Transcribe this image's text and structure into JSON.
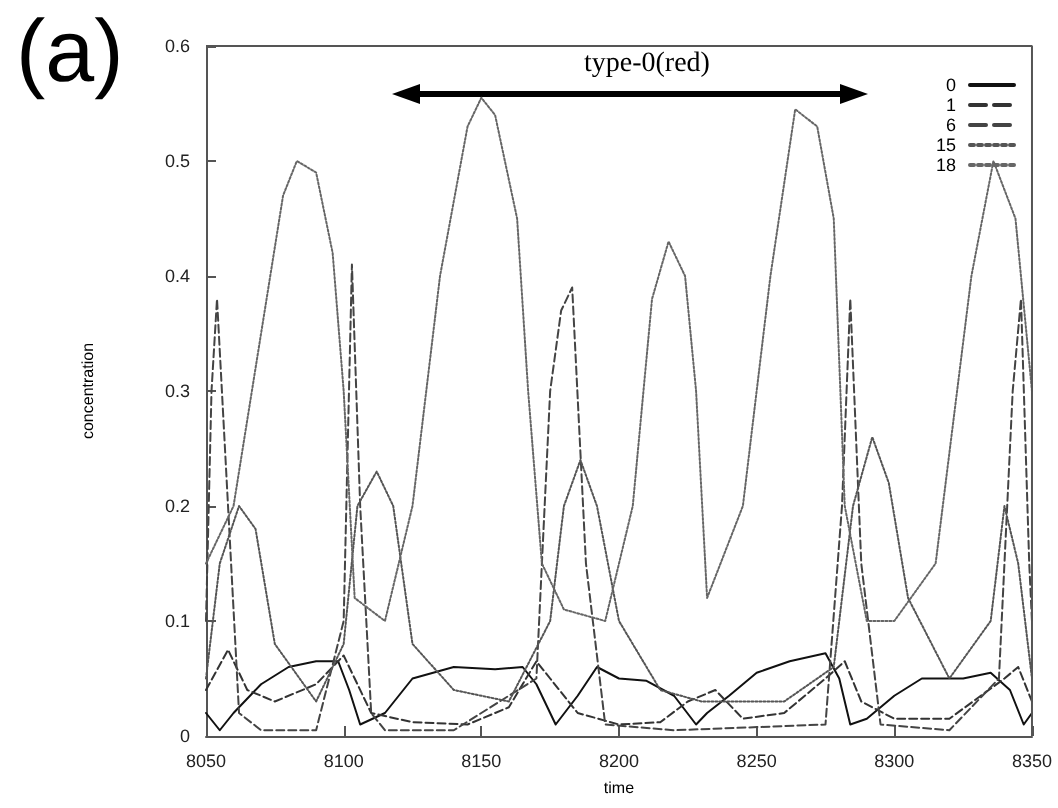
{
  "chart_data": {
    "type": "line",
    "xlabel": "time",
    "ylabel": "concentration",
    "annotations": [
      "(a)",
      "type-0(red)"
    ],
    "xlim": [
      8050,
      8350
    ],
    "xticks": [
      8050,
      8100,
      8150,
      8200,
      8250,
      8300,
      8350
    ],
    "ylim": [
      0,
      0.6
    ],
    "yticks": [
      0,
      0.1,
      0.2,
      0.3,
      0.4,
      0.5,
      0.6
    ],
    "grid": false,
    "legend": "top right",
    "marker": "none",
    "series": [
      {
        "name": "0",
        "color": "#111111",
        "line_style": "solid",
        "x": [
          8050,
          8055,
          8060,
          8070,
          8080,
          8090,
          8098,
          8102,
          8106,
          8115,
          8125,
          8140,
          8155,
          8165,
          8170,
          8177,
          8185,
          8192,
          8200,
          8210,
          8220,
          8228,
          8232,
          8240,
          8250,
          8262,
          8275,
          8280,
          8284,
          8290,
          8300,
          8310,
          8325,
          8335,
          8342,
          8347,
          8350
        ],
        "values": [
          0.02,
          0.005,
          0.02,
          0.045,
          0.06,
          0.065,
          0.065,
          0.04,
          0.01,
          0.02,
          0.05,
          0.06,
          0.058,
          0.06,
          0.045,
          0.01,
          0.035,
          0.06,
          0.05,
          0.048,
          0.035,
          0.01,
          0.02,
          0.035,
          0.055,
          0.065,
          0.072,
          0.05,
          0.01,
          0.015,
          0.035,
          0.05,
          0.05,
          0.055,
          0.04,
          0.01,
          0.02
        ]
      },
      {
        "name": "1",
        "color": "#333333",
        "line_style": "dashed",
        "x": [
          8050,
          8058,
          8065,
          8075,
          8090,
          8100,
          8104,
          8110,
          8125,
          8145,
          8160,
          8170,
          8175,
          8185,
          8200,
          8215,
          8225,
          8235,
          8245,
          8260,
          8275,
          8282,
          8288,
          8300,
          8320,
          8340,
          8345,
          8350
        ],
        "values": [
          0.04,
          0.075,
          0.04,
          0.03,
          0.045,
          0.07,
          0.05,
          0.02,
          0.012,
          0.01,
          0.025,
          0.065,
          0.05,
          0.02,
          0.01,
          0.012,
          0.03,
          0.04,
          0.015,
          0.02,
          0.05,
          0.065,
          0.03,
          0.015,
          0.015,
          0.05,
          0.06,
          0.03
        ]
      },
      {
        "name": "6",
        "color": "#444444",
        "line_style": "dashed",
        "x": [
          8050,
          8052,
          8054,
          8058,
          8062,
          8070,
          8090,
          8100,
          8103,
          8106,
          8110,
          8115,
          8140,
          8170,
          8175,
          8179,
          8183,
          8188,
          8195,
          8220,
          8275,
          8281,
          8284,
          8288,
          8295,
          8320,
          8338,
          8343,
          8346,
          8349,
          8350
        ],
        "values": [
          0.1,
          0.3,
          0.38,
          0.2,
          0.02,
          0.005,
          0.005,
          0.1,
          0.41,
          0.2,
          0.02,
          0.005,
          0.005,
          0.05,
          0.3,
          0.37,
          0.39,
          0.15,
          0.01,
          0.005,
          0.01,
          0.2,
          0.38,
          0.15,
          0.01,
          0.005,
          0.05,
          0.3,
          0.38,
          0.15,
          0.1
        ]
      },
      {
        "name": "15",
        "color": "#555555",
        "line_style": "dotted",
        "x": [
          8050,
          8055,
          8062,
          8068,
          8075,
          8090,
          8100,
          8105,
          8112,
          8118,
          8125,
          8140,
          8160,
          8175,
          8180,
          8186,
          8192,
          8200,
          8215,
          8230,
          8260,
          8278,
          8285,
          8292,
          8298,
          8305,
          8320,
          8335,
          8340,
          8345,
          8350
        ],
        "values": [
          0.05,
          0.15,
          0.2,
          0.18,
          0.08,
          0.03,
          0.08,
          0.2,
          0.23,
          0.2,
          0.08,
          0.04,
          0.03,
          0.1,
          0.2,
          0.24,
          0.2,
          0.1,
          0.04,
          0.03,
          0.03,
          0.06,
          0.2,
          0.26,
          0.22,
          0.12,
          0.05,
          0.1,
          0.2,
          0.15,
          0.05
        ]
      },
      {
        "name": "18",
        "color": "#666666",
        "line_style": "dotted",
        "x": [
          8050,
          8060,
          8070,
          8078,
          8083,
          8090,
          8096,
          8100,
          8104,
          8115,
          8125,
          8135,
          8145,
          8150,
          8155,
          8163,
          8167,
          8172,
          8180,
          8195,
          8205,
          8212,
          8218,
          8224,
          8228,
          8232,
          8245,
          8255,
          8264,
          8272,
          8278,
          8282,
          8290,
          8300,
          8315,
          8328,
          8336,
          8344,
          8350
        ],
        "values": [
          0.15,
          0.2,
          0.35,
          0.47,
          0.5,
          0.49,
          0.42,
          0.3,
          0.12,
          0.1,
          0.2,
          0.4,
          0.53,
          0.555,
          0.54,
          0.45,
          0.3,
          0.15,
          0.11,
          0.1,
          0.2,
          0.38,
          0.43,
          0.4,
          0.3,
          0.12,
          0.2,
          0.4,
          0.545,
          0.53,
          0.45,
          0.2,
          0.1,
          0.1,
          0.15,
          0.4,
          0.5,
          0.45,
          0.3
        ]
      }
    ]
  }
}
